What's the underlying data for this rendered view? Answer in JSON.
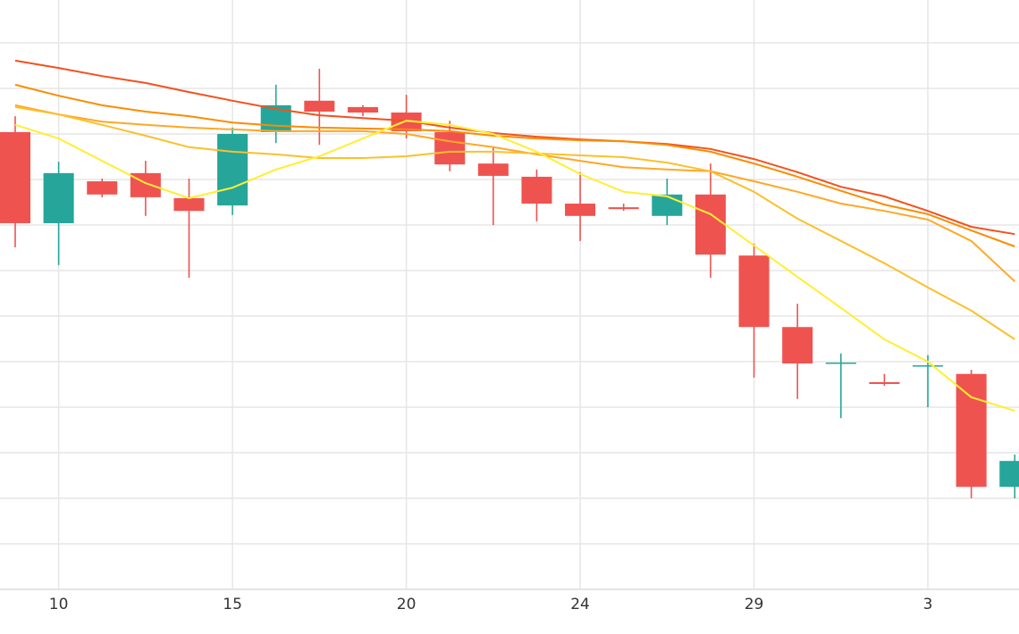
{
  "chart_data": {
    "type": "candlestick",
    "categories": [
      null,
      "10",
      null,
      null,
      null,
      "15",
      null,
      null,
      null,
      "20",
      null,
      null,
      null,
      "24",
      null,
      null,
      null,
      "29",
      null,
      null,
      null,
      "3",
      null,
      null
    ],
    "open": [
      10.04,
      8.04,
      8.96,
      9.14,
      8.59,
      8.43,
      10.04,
      10.73,
      10.59,
      10.47,
      10.04,
      9.35,
      9.06,
      8.47,
      8.39,
      8.2,
      8.67,
      7.33,
      5.76,
      4.96,
      4.55,
      4.9,
      4.73,
      2.25
    ],
    "high": [
      10.39,
      9.39,
      9.02,
      9.41,
      9.02,
      10.14,
      11.08,
      11.43,
      10.63,
      10.86,
      10.29,
      9.71,
      9.22,
      9.16,
      8.47,
      9.02,
      9.35,
      7.59,
      6.27,
      5.18,
      4.73,
      5.14,
      4.82,
      2.96
    ],
    "low": [
      7.51,
      7.12,
      8.61,
      8.2,
      6.84,
      8.22,
      9.8,
      9.76,
      10.39,
      9.9,
      9.18,
      8.0,
      8.08,
      7.65,
      8.31,
      8.0,
      6.84,
      4.65,
      4.18,
      3.76,
      4.47,
      4.0,
      2.0,
      2.0
    ],
    "close": [
      8.04,
      9.14,
      8.67,
      8.61,
      8.31,
      10.0,
      10.63,
      10.49,
      10.47,
      10.06,
      9.33,
      9.08,
      8.47,
      8.2,
      8.35,
      8.67,
      7.35,
      5.76,
      4.96,
      4.98,
      4.51,
      4.92,
      2.25,
      2.82
    ],
    "up_color": "#26a69a",
    "down_color": "#ef5350",
    "series": [
      {
        "color": "#f4511e",
        "values": [
          11.61,
          11.45,
          11.27,
          11.12,
          10.92,
          10.73,
          10.55,
          10.41,
          10.35,
          10.29,
          10.14,
          10.02,
          9.94,
          9.88,
          9.84,
          9.78,
          9.67,
          9.45,
          9.16,
          8.84,
          8.63,
          8.31,
          7.96,
          7.8
        ]
      },
      {
        "color": "#fb8c00",
        "values": [
          11.08,
          10.84,
          10.63,
          10.49,
          10.39,
          10.25,
          10.18,
          10.14,
          10.12,
          10.1,
          10.06,
          9.96,
          9.9,
          9.86,
          9.84,
          9.76,
          9.61,
          9.35,
          9.06,
          8.75,
          8.45,
          8.24,
          7.88,
          7.53
        ]
      },
      {
        "color": "#ffa726",
        "values": [
          10.63,
          10.43,
          10.27,
          10.2,
          10.14,
          10.1,
          10.06,
          10.06,
          10.06,
          10.0,
          9.84,
          9.71,
          9.55,
          9.41,
          9.27,
          9.22,
          9.18,
          8.96,
          8.73,
          8.47,
          8.31,
          8.12,
          7.65,
          6.76
        ]
      },
      {
        "color": "#fbc02d",
        "values": [
          10.59,
          10.43,
          10.2,
          9.96,
          9.71,
          9.61,
          9.55,
          9.47,
          9.47,
          9.51,
          9.61,
          9.61,
          9.57,
          9.53,
          9.49,
          9.37,
          9.18,
          8.73,
          8.14,
          7.65,
          7.16,
          6.63,
          6.12,
          5.49
        ]
      },
      {
        "color": "#ffee33",
        "values": [
          10.2,
          9.9,
          9.41,
          8.92,
          8.59,
          8.82,
          9.22,
          9.51,
          9.9,
          10.29,
          10.2,
          10.0,
          9.61,
          9.12,
          8.73,
          8.63,
          8.24,
          7.55,
          6.86,
          6.18,
          5.49,
          5.0,
          4.22,
          3.92
        ]
      }
    ],
    "ylim": [
      0,
      13
    ],
    "yticks": [
      0,
      1,
      2,
      3,
      4,
      5,
      6,
      7,
      8,
      9,
      10,
      11,
      12
    ],
    "grid": true
  }
}
